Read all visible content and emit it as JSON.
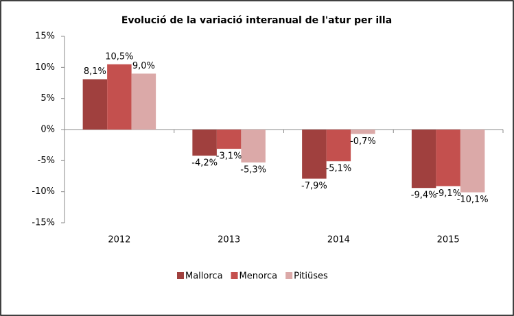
{
  "chart_data": {
    "type": "bar",
    "title": "Evolució de la variació interanual de l'atur per illa",
    "categories": [
      "2012",
      "2013",
      "2014",
      "2015"
    ],
    "series": [
      {
        "name": "Mallorca",
        "color": "#a0403e",
        "values": [
          8.1,
          -4.2,
          -7.9,
          -9.4
        ],
        "value_labels": [
          "8,1%",
          "-4,2%",
          "-7,9%",
          "-9,4%"
        ]
      },
      {
        "name": "Menorca",
        "color": "#c4504e",
        "values": [
          10.5,
          -3.1,
          -5.1,
          -9.1
        ],
        "value_labels": [
          "10,5%",
          "-3,1%",
          "-5,1%",
          "-9,1%"
        ]
      },
      {
        "name": "Pitiüses",
        "color": "#dba9a8",
        "values": [
          9.0,
          -5.3,
          -0.7,
          -10.1
        ],
        "value_labels": [
          "9,0%",
          "-5,3%",
          "-0,7%",
          "-10,1%"
        ]
      }
    ],
    "ylim": [
      -15,
      15
    ],
    "yticks": [
      {
        "value": -15,
        "label": "-15%"
      },
      {
        "value": -10,
        "label": "-10%"
      },
      {
        "value": -5,
        "label": "-5%"
      },
      {
        "value": 0,
        "label": "0%"
      },
      {
        "value": 5,
        "label": "5%"
      },
      {
        "value": 10,
        "label": "10%"
      },
      {
        "value": 15,
        "label": "15%"
      }
    ],
    "grid": false,
    "legend": "bottom"
  }
}
